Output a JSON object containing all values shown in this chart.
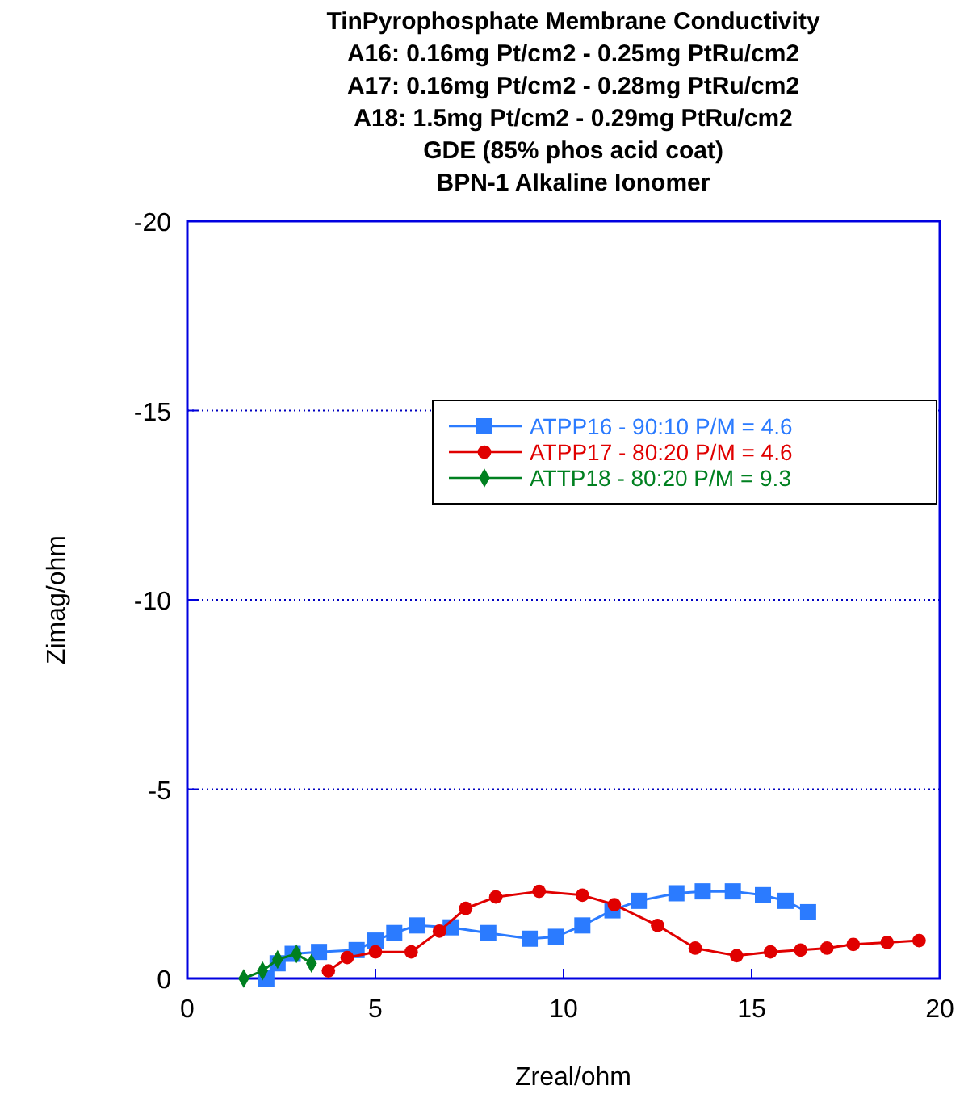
{
  "chart_data": {
    "type": "line",
    "title": "TinPyrophosphate Membrane Conductivity",
    "subtitle": "A16: 0.16mg Pt/cm2 - 0.25mg PtRu/cm2\nA17: 0.16mg Pt/cm2 - 0.28mg PtRu/cm2\nA18: 1.5mg Pt/cm2 - 0.29mg PtRu/cm2\nGDE (85% phos acid coat)\nBPN-1 Alkaline Ionomer",
    "xlabel": "Zreal/ohm",
    "ylabel": "Zimag/ohm",
    "xlim": [
      0,
      20
    ],
    "xticks": [
      0,
      5,
      10,
      15,
      20
    ],
    "ylim": [
      0,
      -20
    ],
    "yticks": [
      0,
      -5,
      -10,
      -15,
      -20
    ],
    "grid": "y",
    "legend": "right",
    "line_style": "solid",
    "series": [
      {
        "name": "ATPP16 - 90:10 P/M = 4.6",
        "color": "#2b7bff",
        "marker": "square",
        "x": [
          2.1,
          2.4,
          2.8,
          3.5,
          4.5,
          5.0,
          5.5,
          6.1,
          7.0,
          8.0,
          9.1,
          9.8,
          10.5,
          11.3,
          12.0,
          13.0,
          13.7,
          14.5,
          15.3,
          15.9,
          16.5
        ],
        "values": [
          0,
          -0.4,
          -0.65,
          -0.7,
          -0.75,
          -1.0,
          -1.2,
          -1.4,
          -1.35,
          -1.2,
          -1.05,
          -1.1,
          -1.4,
          -1.8,
          -2.05,
          -2.25,
          -2.3,
          -2.3,
          -2.2,
          -2.05,
          -1.75
        ]
      },
      {
        "name": "ATPP17 - 80:20 P/M = 4.6",
        "color": "#e00000",
        "marker": "circle",
        "x": [
          3.75,
          4.25,
          5.0,
          5.95,
          6.7,
          7.4,
          8.2,
          9.35,
          10.5,
          11.35,
          12.5,
          13.5,
          14.6,
          15.5,
          16.3,
          17.0,
          17.7,
          18.6,
          19.45
        ],
        "values": [
          -0.2,
          -0.55,
          -0.7,
          -0.7,
          -1.25,
          -1.85,
          -2.15,
          -2.3,
          -2.2,
          -1.95,
          -1.4,
          -0.8,
          -0.6,
          -0.7,
          -0.75,
          -0.8,
          -0.9,
          -0.95,
          -1.0
        ]
      },
      {
        "name": "ATTP18 - 80:20 P/M = 9.3",
        "color": "#008020",
        "marker": "diamond",
        "x": [
          1.5,
          2.0,
          2.4,
          2.9,
          3.3
        ],
        "values": [
          0,
          -0.2,
          -0.5,
          -0.65,
          -0.4
        ]
      }
    ]
  }
}
